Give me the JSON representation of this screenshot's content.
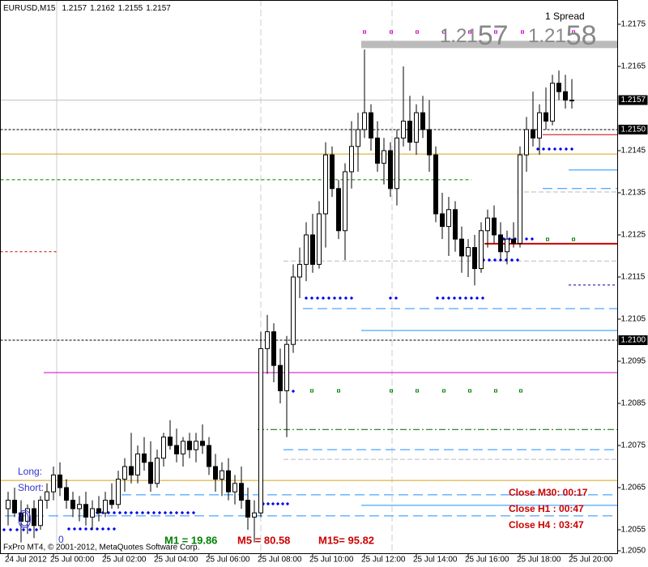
{
  "chart_data": {
    "type": "candlestick",
    "title": "EURUSD,M15",
    "spread_label": "1 Spread",
    "bid_prefix": "1.21",
    "bid_big": "57",
    "ask_prefix": "1.21",
    "ask_big": "58",
    "open": [
      1.206,
      1.2062,
      1.2059,
      1.2057,
      1.206,
      1.2056,
      1.2062,
      1.2064,
      1.2068,
      1.2065,
      1.2062,
      1.206,
      1.2061,
      1.2058,
      1.206,
      1.2059,
      1.2062,
      1.2061,
      1.2067,
      1.207,
      1.2068,
      1.2073,
      1.2071,
      1.2066,
      1.2072,
      1.2077,
      1.2075,
      1.2073,
      1.2076,
      1.2074,
      1.2076,
      1.2075,
      1.207,
      1.2067,
      1.2069,
      1.2064,
      1.2066,
      1.2062,
      1.2058,
      1.2059,
      1.2098,
      1.2102,
      1.2094,
      1.2088,
      1.2099,
      1.2115,
      1.2118,
      1.2125,
      1.2118,
      1.213,
      1.2144,
      1.2136,
      1.2126,
      1.214,
      1.2146,
      1.215,
      1.2154,
      1.2148,
      1.2142,
      1.2145,
      1.2136,
      1.2148,
      1.2152,
      1.2147,
      1.2154,
      1.215,
      1.2144,
      1.213,
      1.2127,
      1.2131,
      1.2124,
      1.212,
      1.2122,
      1.2117,
      1.2126,
      1.2129,
      1.2125,
      1.2121,
      1.2124,
      1.2123,
      1.2144,
      1.215,
      1.2148,
      1.2154,
      1.2152,
      1.2161,
      1.2159,
      1.2157
    ],
    "high": [
      1.2064,
      1.2065,
      1.2062,
      1.2061,
      1.2062,
      1.2063,
      1.2066,
      1.207,
      1.2071,
      1.2067,
      1.2064,
      1.2063,
      1.2064,
      1.2062,
      1.2063,
      1.2064,
      1.2066,
      1.2069,
      1.2072,
      1.2078,
      1.2075,
      1.2077,
      1.2076,
      1.2074,
      1.2078,
      1.2081,
      1.2079,
      1.2077,
      1.2078,
      1.2078,
      1.208,
      1.2077,
      1.2073,
      1.2071,
      1.2072,
      1.2068,
      1.207,
      1.2065,
      1.2062,
      1.2102,
      1.2106,
      1.2104,
      1.2098,
      1.2101,
      1.2118,
      1.2122,
      1.2128,
      1.213,
      1.2133,
      1.2147,
      1.2146,
      1.2138,
      1.2142,
      1.2152,
      1.2154,
      1.2169,
      1.2156,
      1.2152,
      1.2148,
      1.2147,
      1.215,
      1.2165,
      1.2158,
      1.2156,
      1.2158,
      1.2157,
      1.2146,
      1.2135,
      1.2134,
      1.2133,
      1.2127,
      1.2124,
      1.2125,
      1.2128,
      1.2131,
      1.2132,
      1.2128,
      1.2126,
      1.2128,
      1.2146,
      1.2153,
      1.2159,
      1.2156,
      1.216,
      1.2163,
      1.2164,
      1.2163,
      1.2162
    ],
    "low": [
      1.2056,
      1.2058,
      1.2052,
      1.2054,
      1.2053,
      1.2055,
      1.206,
      1.2062,
      1.2063,
      1.206,
      1.2058,
      1.2057,
      1.2056,
      1.2055,
      1.2057,
      1.2058,
      1.206,
      1.206,
      1.2064,
      1.2066,
      1.2066,
      1.2069,
      1.2064,
      1.2065,
      1.207,
      1.2074,
      1.2071,
      1.207,
      1.2072,
      1.2071,
      1.2073,
      1.2068,
      1.2064,
      1.2063,
      1.2062,
      1.2061,
      1.206,
      1.2055,
      1.2052,
      1.2058,
      1.2092,
      1.209,
      1.2085,
      1.2077,
      1.2097,
      1.211,
      1.2114,
      1.2116,
      1.2117,
      1.2122,
      1.2134,
      1.2124,
      1.2119,
      1.2136,
      1.214,
      1.2148,
      1.2145,
      1.214,
      1.2137,
      1.2134,
      1.2132,
      1.2146,
      1.2145,
      1.2144,
      1.2148,
      1.214,
      1.2128,
      1.2124,
      1.212,
      1.2121,
      1.2116,
      1.2115,
      1.2113,
      1.2116,
      1.2122,
      1.2123,
      1.2119,
      1.2118,
      1.2122,
      1.2122,
      1.214,
      1.2146,
      1.2144,
      1.215,
      1.2151,
      1.2157,
      1.2155,
      1.2155
    ],
    "close": [
      1.2062,
      1.2059,
      1.2057,
      1.206,
      1.2056,
      1.2062,
      1.2064,
      1.2068,
      1.2065,
      1.2062,
      1.206,
      1.2061,
      1.2058,
      1.206,
      1.2059,
      1.2062,
      1.2061,
      1.2067,
      1.207,
      1.2068,
      1.2073,
      1.2071,
      1.2066,
      1.2072,
      1.2077,
      1.2075,
      1.2073,
      1.2076,
      1.2074,
      1.2076,
      1.2075,
      1.207,
      1.2067,
      1.2069,
      1.2064,
      1.2066,
      1.2062,
      1.2058,
      1.2059,
      1.2098,
      1.2102,
      1.2094,
      1.2088,
      1.2099,
      1.2115,
      1.2118,
      1.2125,
      1.2118,
      1.213,
      1.2144,
      1.2136,
      1.2126,
      1.214,
      1.2146,
      1.215,
      1.2154,
      1.2148,
      1.2142,
      1.2145,
      1.2136,
      1.2148,
      1.2152,
      1.2147,
      1.2154,
      1.215,
      1.2144,
      1.213,
      1.2127,
      1.2131,
      1.2124,
      1.212,
      1.2122,
      1.2117,
      1.2126,
      1.2129,
      1.2125,
      1.2121,
      1.2124,
      1.2123,
      1.2144,
      1.215,
      1.2148,
      1.2154,
      1.2152,
      1.2161,
      1.2159,
      1.2157,
      1.2157
    ],
    "ylim": [
      1.204942,
      1.218038
    ],
    "yticks": [
      1.2175,
      1.2165,
      1.2145,
      1.2135,
      1.2125,
      1.2115,
      1.2105,
      1.2095,
      1.2085,
      1.2075,
      1.2065,
      1.2055,
      {
        "value": 1.205,
        "label": "1.2050"
      }
    ],
    "price_markers": [
      1.2157,
      {
        "value": 1.215,
        "label": "1.2150"
      },
      {
        "value": 1.21,
        "label": "1.2100"
      }
    ],
    "xticks": [
      {
        "value": 0,
        "label": "24 Jul 2012"
      },
      {
        "value": 7,
        "label": "25 Jul 00:00"
      },
      {
        "value": 15,
        "label": "25 Jul 02:00"
      },
      {
        "value": 23,
        "label": "25 Jul 04:00"
      },
      {
        "value": 31,
        "label": "25 Jul 06:00"
      },
      {
        "value": 39,
        "label": "25 Jul 08:00"
      },
      {
        "value": 47,
        "label": "25 Jul 10:00"
      },
      {
        "value": 55,
        "label": "25 Jul 12:00"
      },
      {
        "value": 63,
        "label": "25 Jul 14:00"
      },
      {
        "value": 71,
        "label": "25 Jul 16:00"
      },
      {
        "value": 79,
        "label": "25 Jul 18:00"
      },
      {
        "value": 87,
        "label": "25 Jul 20:00"
      }
    ],
    "levels": [
      {
        "value": 1.2157,
        "color": "#c0c0c0"
      },
      {
        "value": 1.215,
        "color": "#000000",
        "dash": "3,2"
      },
      {
        "value": 1.21,
        "color": "#000000",
        "dash": "3,2"
      },
      {
        "value": 1.21442,
        "color": "#d4a017"
      },
      {
        "value": 1.20667,
        "color": "#d4a017"
      },
      {
        "value": 1.21381,
        "color": "#008000",
        "dash": "4,3",
        "to": 71
      },
      {
        "value": 1.2121,
        "color": "#cc0000",
        "dash": "3,3",
        "to": 7
      },
      {
        "value": 1.20923,
        "color": "#cc00cc",
        "from": 6
      },
      {
        "value": 1.21488,
        "color": "#cc0000",
        "from": 83
      },
      {
        "value": 1.21229,
        "color": "#cc0000",
        "from": 74,
        "width": 2
      },
      {
        "value": 1.21404,
        "color": "#1e90ff",
        "from": 87
      },
      {
        "value": 1.2136,
        "color": "#1e90ff",
        "dash": "12,6",
        "from": 83
      },
      {
        "value": 1.21131,
        "color": "#0000aa",
        "dash": "3,3",
        "from": 87
      },
      {
        "value": 1.21075,
        "color": "#1e90ff",
        "dash": "12,6",
        "from": 46
      },
      {
        "value": 1.21023,
        "color": "#1e90ff",
        "from": 55
      },
      {
        "value": 1.2074,
        "color": "#1e90ff",
        "dash": "12,6",
        "from": 43
      },
      {
        "value": 1.20633,
        "color": "#1e90ff",
        "dash": "12,6",
        "from": 18
      },
      {
        "value": 1.20608,
        "color": "#1e90ff",
        "from": 55
      },
      {
        "value": 1.20583,
        "color": "#1e90ff",
        "dash": "12,6",
        "from": 0
      },
      {
        "value": 1.20788,
        "color": "#006400",
        "dash": "8,3,2,3",
        "from": 39
      },
      {
        "value": 1.20717,
        "color": "#bbbbbb",
        "dash": "6,3",
        "from": 43
      },
      {
        "value": 1.21188,
        "color": "#bbbbbb",
        "dash": "6,3",
        "from": 43
      },
      {
        "value": 1.21352,
        "color": "#bbbbbb",
        "dash": "6,3",
        "from": 79
      },
      {
        "value": 1.21702,
        "color": "#bbbbbb",
        "width": 9,
        "from": 55
      }
    ],
    "long_label": "Long:",
    "short_label": "Short:",
    "long_value": 0,
    "short_value": 0,
    "m1": "M1 = 19.86",
    "m5": "M5 =  80.58",
    "m15": "M15=  95.82",
    "close_m30": "Close M30: 00:17",
    "close_h1": "Close H1 :  00:47",
    "close_h4": "Close H4 :  03:47",
    "copyright": "FxPro MT4, © 2001-2012, MetaQuotes Software Corp."
  }
}
